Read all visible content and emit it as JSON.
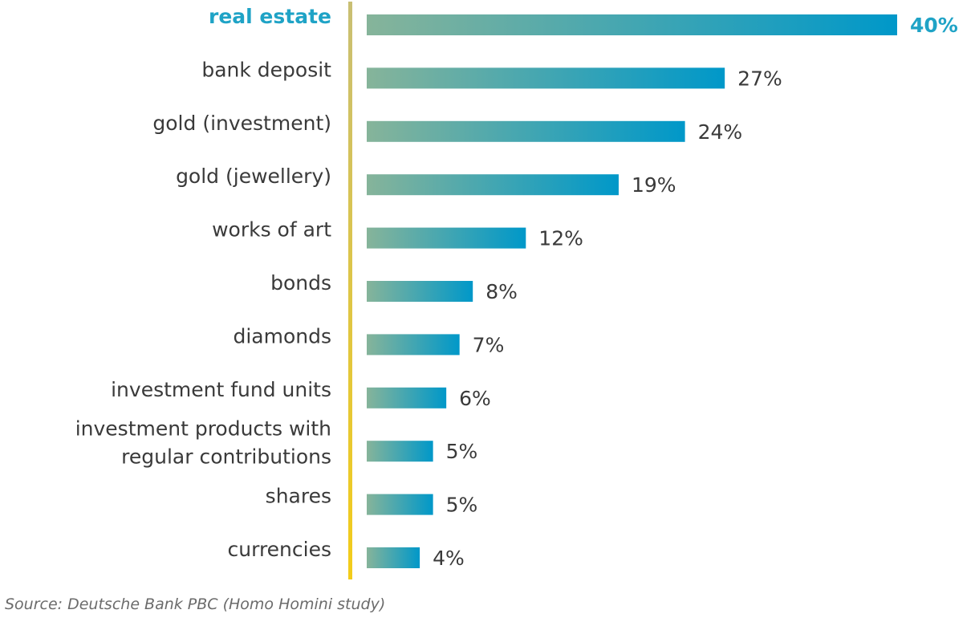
{
  "chart_data": {
    "type": "bar",
    "orientation": "horizontal",
    "categories": [
      "real estate",
      "bank deposit",
      "gold (investment)",
      "gold (jewellery)",
      "works of art",
      "bonds",
      "diamonds",
      "investment fund units",
      "investment products with regular contributions",
      "shares",
      "currencies"
    ],
    "category_lines": [
      [
        "real estate"
      ],
      [
        "bank deposit"
      ],
      [
        "gold (investment)"
      ],
      [
        "gold (jewellery)"
      ],
      [
        "works of art"
      ],
      [
        "bonds"
      ],
      [
        "diamonds"
      ],
      [
        "investment fund units"
      ],
      [
        "investment products with",
        "regular contributions"
      ],
      [
        "shares"
      ],
      [
        "currencies"
      ]
    ],
    "values": [
      40,
      27,
      24,
      19,
      12,
      8,
      7,
      6,
      5,
      5,
      4
    ],
    "value_labels": [
      "40%",
      "27%",
      "24%",
      "19%",
      "12%",
      "8%",
      "7%",
      "6%",
      "5%",
      "5%",
      "4%"
    ],
    "highlight_index": 0,
    "xlim": [
      0,
      40
    ],
    "grid": false,
    "legend": "none",
    "title": "",
    "xlabel": "",
    "ylabel": "",
    "colors": {
      "bar_start": "#86b49a",
      "bar_end": "#0098c9",
      "highlight_text": "#1fa3c6",
      "text": "#3a3a3a",
      "axis_line_top": "#c9bf74",
      "axis_line_bottom": "#f3cc1a"
    }
  },
  "footer": {
    "source": "Source: Deutsche Bank PBC (Homo Homini study)"
  }
}
